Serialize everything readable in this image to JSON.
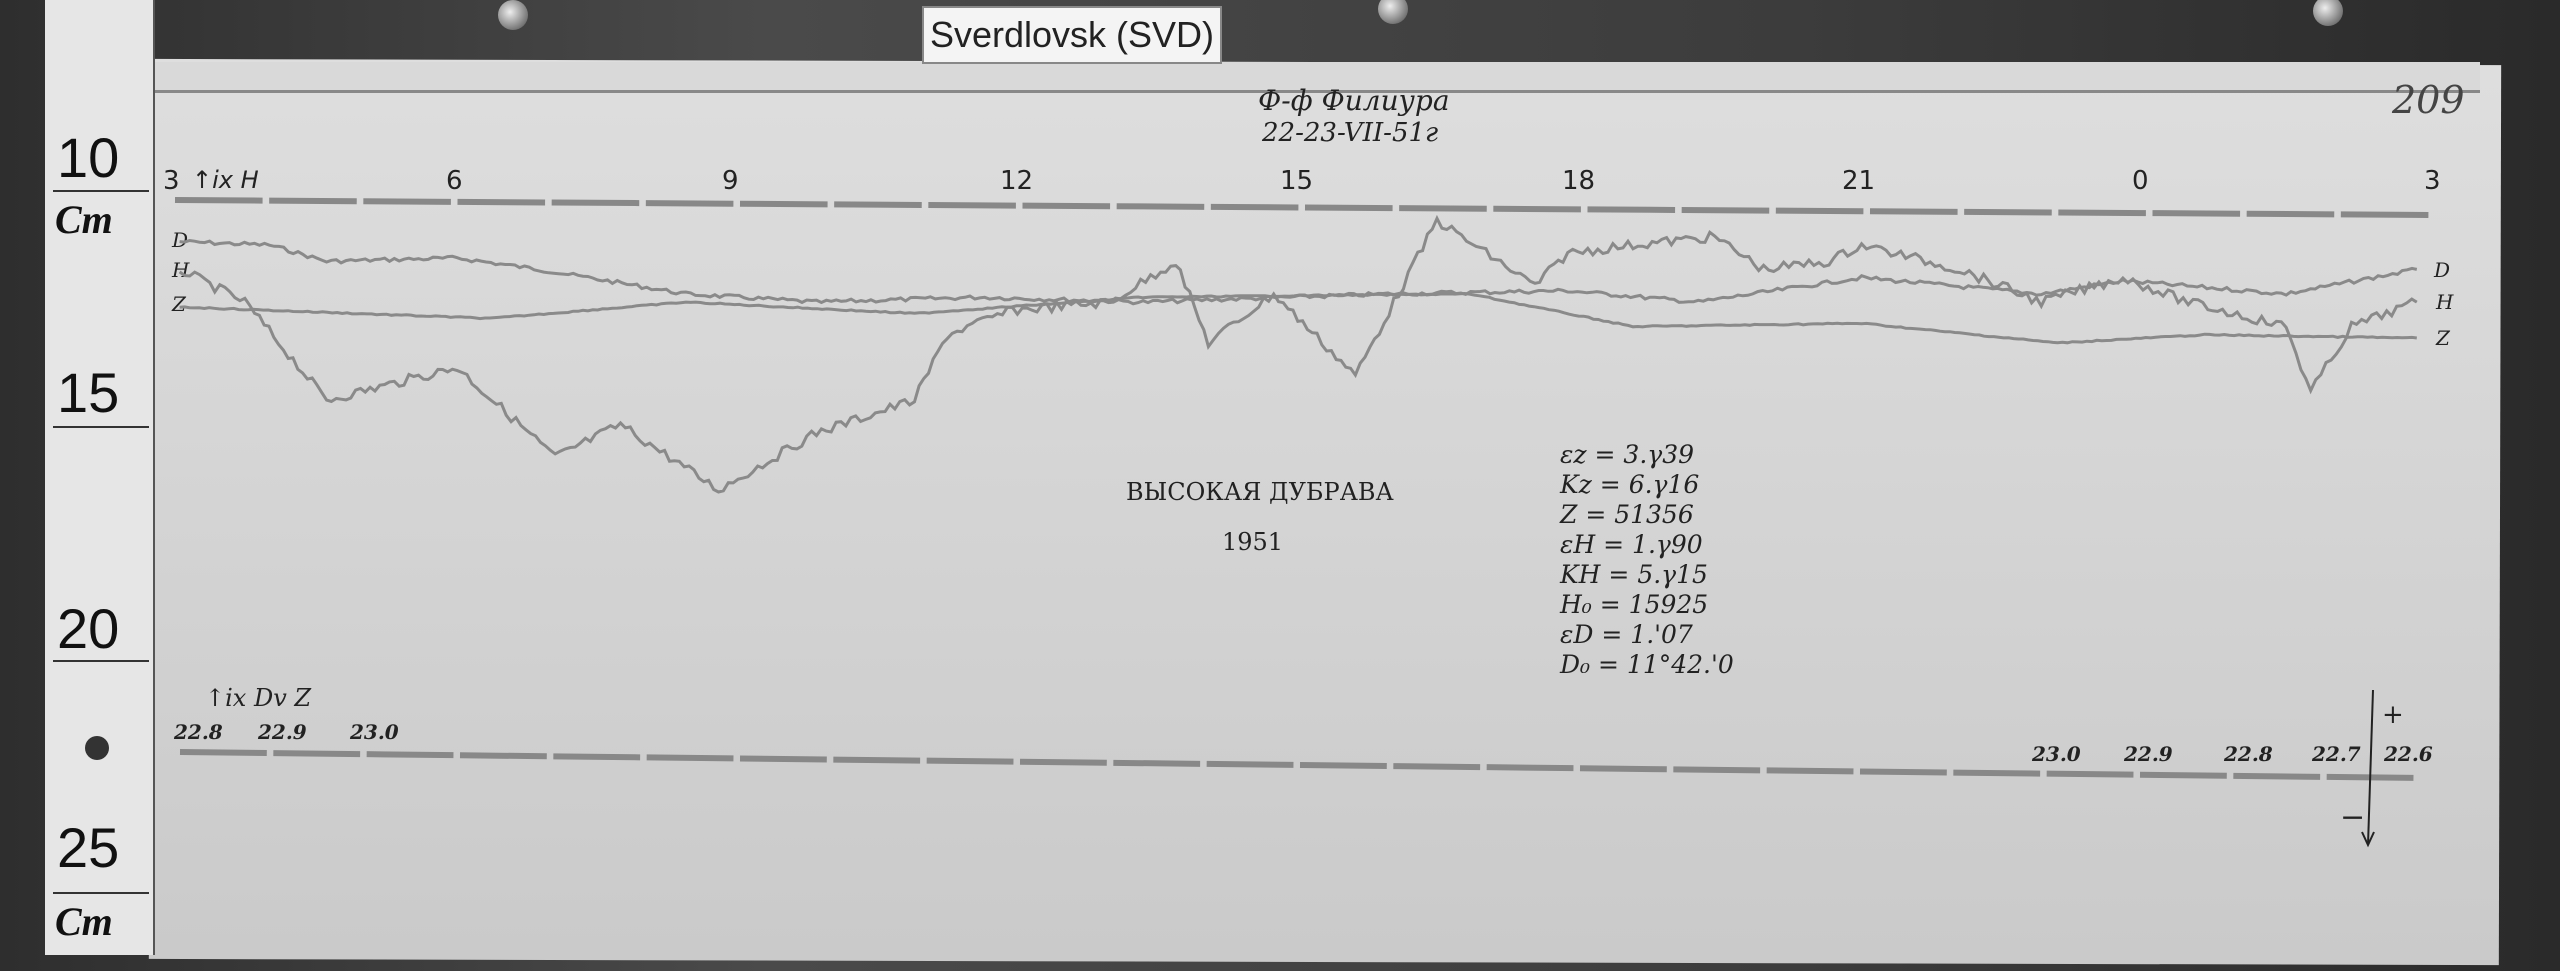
{
  "station_label": "Sverdlovsk (SVD)",
  "ruler": {
    "marks": [
      "10",
      "15",
      "20",
      "25"
    ],
    "unit": "Cm"
  },
  "header": {
    "line1": "Ф-ф Филиура",
    "line2": "22-23-VII-51г",
    "sheet_number": "209"
  },
  "hour_axis": {
    "start_note": "↑ix H",
    "hours": [
      "3",
      "6",
      "9",
      "12",
      "15",
      "18",
      "21",
      "0",
      "3"
    ]
  },
  "trace_labels_left": [
    "D",
    "H",
    "Z"
  ],
  "trace_labels_right": [
    "D",
    "H",
    "Z"
  ],
  "center": {
    "place": "ВЫСОКАЯ ДУБРАВА",
    "year": "1951"
  },
  "constants": [
    "εz = 3.γ39",
    "Kz = 6.γ16",
    "Z = 51356",
    "εH = 1.γ90",
    "KH = 5.γ15",
    "H₀ = 15925",
    "εD = 1.'07",
    "D₀ = 11°42.'0"
  ],
  "baseline": {
    "note": "↑ix Dv Z",
    "left_labels": [
      "22.8",
      "22.9",
      "23.0"
    ],
    "right_labels": [
      "23.0",
      "22.9",
      "22.8",
      "22.7",
      "22.6"
    ],
    "plus": "+",
    "minus": "−"
  },
  "colors": {
    "trace": "#8a8a8a",
    "ink": "#222222",
    "paper": "#d6d6d6"
  }
}
